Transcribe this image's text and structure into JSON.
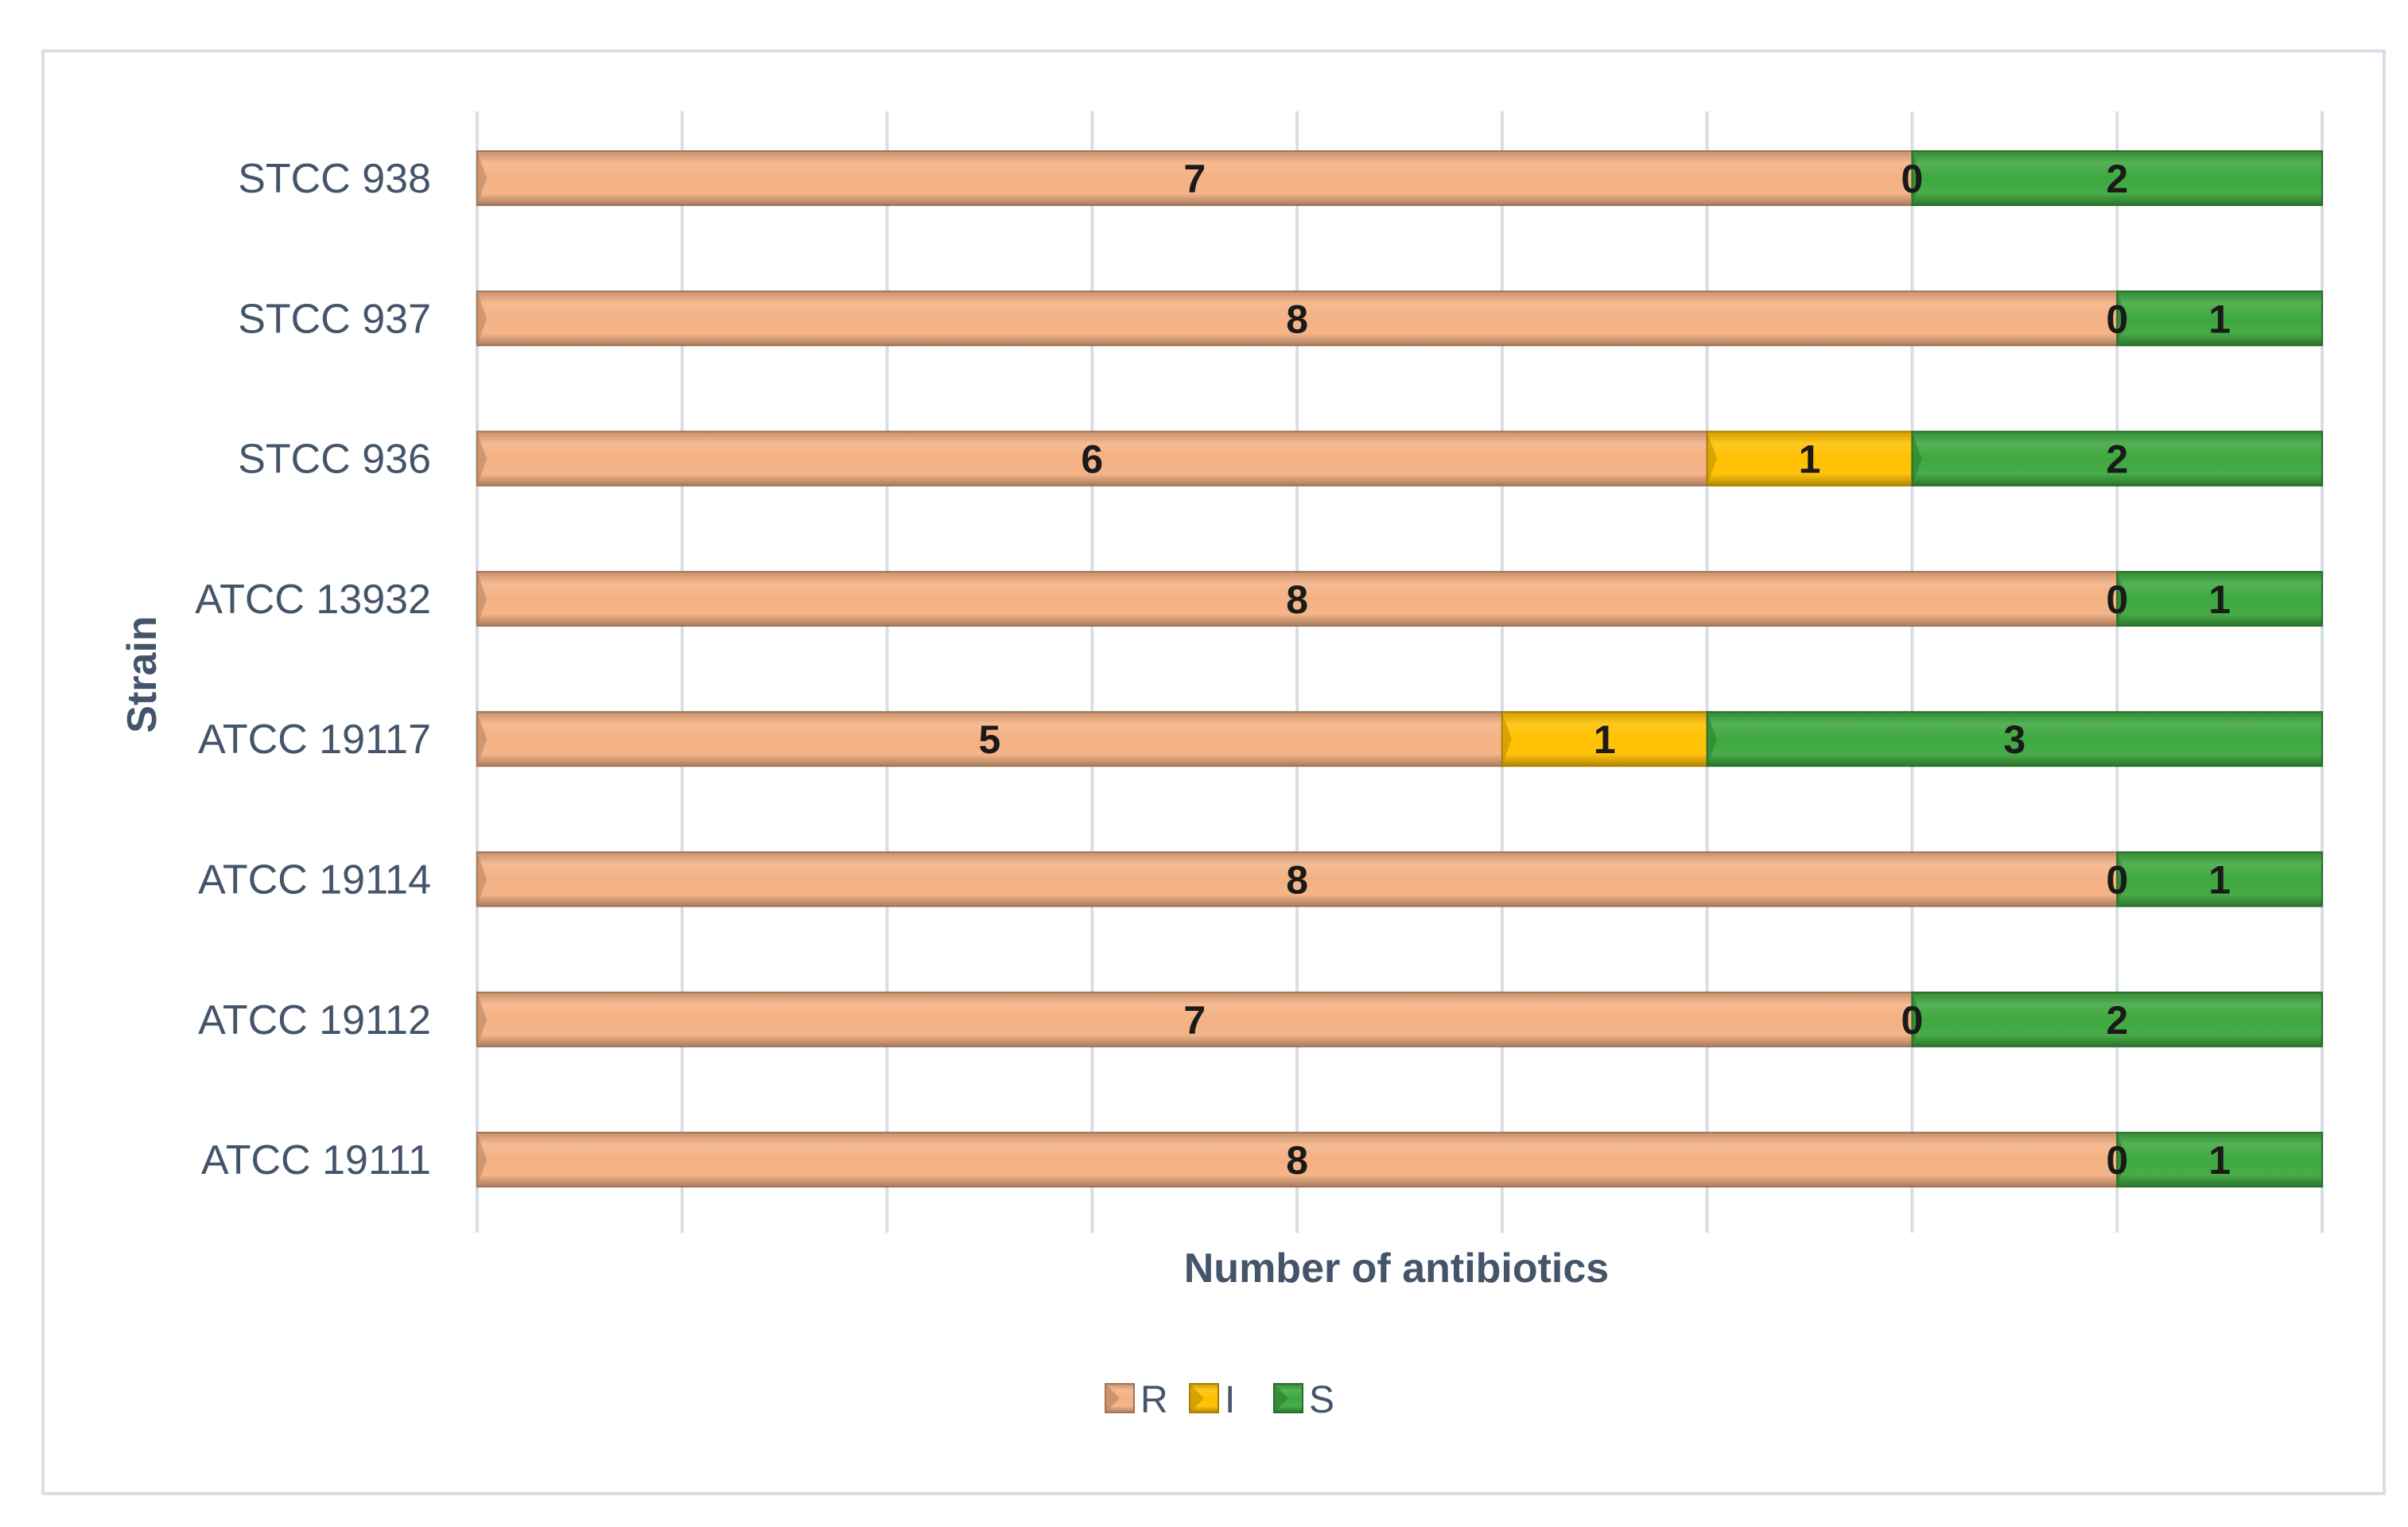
{
  "chart_data": {
    "type": "bar",
    "orientation": "horizontal",
    "stacked": true,
    "title": "",
    "xlabel": "Number of antibiotics",
    "ylabel": "Strain",
    "xlim": [
      0,
      9
    ],
    "grid": true,
    "legend_position": "bottom",
    "categories": [
      "STCC 938",
      "STCC 937",
      "STCC 936",
      "ATCC 13932",
      "ATCC 19117",
      "ATCC 19114",
      "ATCC 19112",
      "ATCC 19111"
    ],
    "series": [
      {
        "name": "R",
        "color": "#f4b183",
        "values": [
          7,
          8,
          6,
          8,
          5,
          8,
          7,
          8
        ]
      },
      {
        "name": "I",
        "color": "#ffc000",
        "values": [
          0,
          0,
          1,
          0,
          1,
          0,
          0,
          0
        ]
      },
      {
        "name": "S",
        "color": "#3ea83e",
        "values": [
          2,
          1,
          2,
          1,
          3,
          1,
          2,
          1
        ]
      }
    ]
  }
}
